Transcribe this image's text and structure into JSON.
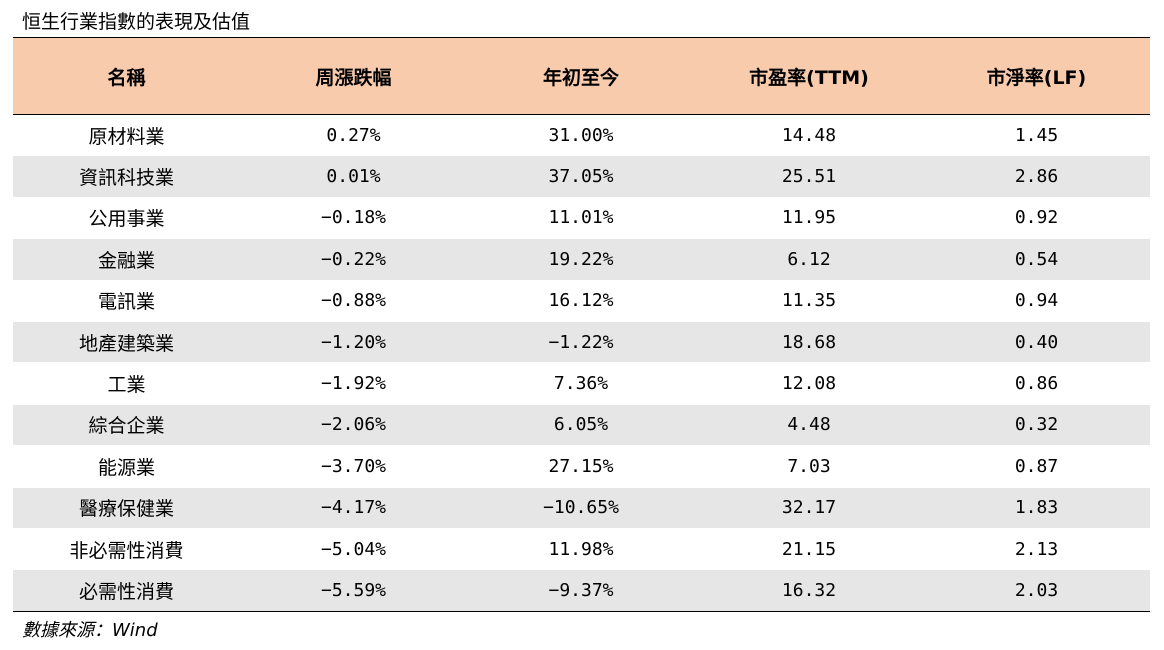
{
  "title": "恒生行業指數的表現及估值",
  "table": {
    "headers": [
      "名稱",
      "周漲跌幅",
      "年初至今",
      "市盈率(TTM)",
      "市淨率(LF)"
    ],
    "rows": [
      [
        "原材料業",
        "0.27%",
        "31.00%",
        "14.48",
        "1.45"
      ],
      [
        "資訊科技業",
        "0.01%",
        "37.05%",
        "25.51",
        "2.86"
      ],
      [
        "公用事業",
        "−0.18%",
        "11.01%",
        "11.95",
        "0.92"
      ],
      [
        "金融業",
        "−0.22%",
        "19.22%",
        "6.12",
        "0.54"
      ],
      [
        "電訊業",
        "−0.88%",
        "16.12%",
        "11.35",
        "0.94"
      ],
      [
        "地產建築業",
        "−1.20%",
        "−1.22%",
        "18.68",
        "0.40"
      ],
      [
        "工業",
        "−1.92%",
        "7.36%",
        "12.08",
        "0.86"
      ],
      [
        "綜合企業",
        "−2.06%",
        "6.05%",
        "4.48",
        "0.32"
      ],
      [
        "能源業",
        "−3.70%",
        "27.15%",
        "7.03",
        "0.87"
      ],
      [
        "醫療保健業",
        "−4.17%",
        "−10.65%",
        "32.17",
        "1.83"
      ],
      [
        "非必需性消費",
        "−5.04%",
        "11.98%",
        "21.15",
        "2.13"
      ],
      [
        "必需性消費",
        "−5.59%",
        "−9.37%",
        "16.32",
        "2.03"
      ]
    ]
  },
  "source": "數據來源：Wind",
  "colors": {
    "header_bg": "#f8cbad",
    "stripe_bg": "#e7e6e6"
  }
}
